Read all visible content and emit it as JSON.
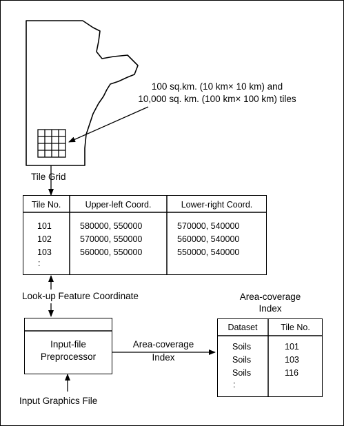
{
  "map": {
    "tiles_caption_line1": "100 sq.km. (10 km× 10 km) and",
    "tiles_caption_line2": "10,000 sq. km. (100 km× 100 km) tiles",
    "grid_label": "Tile Grid"
  },
  "tile_table": {
    "headers": [
      "Tile No.",
      "Upper-left Coord.",
      "Lower-right Coord."
    ],
    "rows": [
      [
        "101",
        "580000, 550000",
        "570000, 540000"
      ],
      [
        "102",
        "570000, 550000",
        "560000, 540000"
      ],
      [
        "103",
        "560000, 550000",
        "550000, 540000"
      ]
    ],
    "ellipsis": ":"
  },
  "lookup_label": "Look-up Feature Coordinate",
  "preprocessor": {
    "line1": "Input-file",
    "line2": "Preprocessor"
  },
  "arrow_label": {
    "line1": "Area-coverage",
    "line2": "Index"
  },
  "index_table": {
    "title_line1": "Area-coverage",
    "title_line2": "Index",
    "headers": [
      "Dataset",
      "Tile No."
    ],
    "rows": [
      [
        "Soils",
        "101"
      ],
      [
        "Soils",
        "103"
      ],
      [
        "Soils",
        "116"
      ]
    ],
    "ellipsis": ":"
  },
  "input_label": "Input Graphics File"
}
